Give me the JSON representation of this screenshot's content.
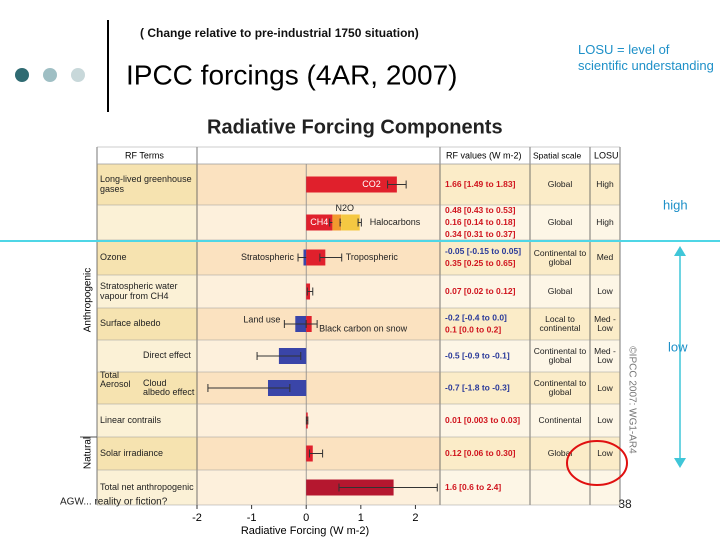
{
  "slide": {
    "subtitle": "( Change relative to  pre-industrial 1750 situation)",
    "title": "IPCC forcings (4AR, 2007)",
    "losu_note": "LOSU = level of scientific understanding",
    "high": "high",
    "low": "low",
    "footer": "AGW... reality or fiction?",
    "page_number": "38",
    "credit": "©IPCC 2007: WG1-AR4"
  },
  "chart_data": {
    "type": "bar",
    "orientation": "horizontal",
    "title": "Radiative Forcing Components",
    "xlabel": "Radiative Forcing (W m-2)",
    "column_headers": {
      "terms": "RF Terms",
      "values": "RF values (W m-2)",
      "scale": "Spatial scale",
      "losu": "LOSU"
    },
    "groups": {
      "anthropogenic": "Anthropogenic",
      "natural": "Natural",
      "aerosol": "Total Aerosol"
    },
    "rows": [
      {
        "label": "Long-lived greenhouse gases",
        "bars": [
          {
            "name": "CO2",
            "value": 1.66,
            "range": [
              1.49,
              1.83
            ],
            "value_label": "1.66 [1.49 to 1.83]",
            "color": "#e0202c"
          }
        ],
        "scale": "Global",
        "losu": "High"
      },
      {
        "stacked": true,
        "bars": [
          {
            "name": "CH4",
            "value": 0.48,
            "range": [
              0.43,
              0.53
            ],
            "value_label": "0.48 [0.43 to 0.53]",
            "color": "#e0202c"
          },
          {
            "name": "N2O",
            "value": 0.16,
            "range": [
              0.14,
              0.18
            ],
            "value_label": "0.16 [0.14 to 0.18]",
            "color": "#f29a2e"
          },
          {
            "name": "Halocarbons",
            "value": 0.34,
            "range": [
              0.31,
              0.37
            ],
            "value_label": "0.34 [0.31 to 0.37]",
            "color": "#f5c842"
          }
        ],
        "scale": "Global",
        "losu": "High"
      },
      {
        "label": "Ozone",
        "bars": [
          {
            "name": "Stratospheric",
            "value": -0.05,
            "range": [
              -0.15,
              0.05
            ],
            "value_label": "-0.05 [-0.15 to 0.05]",
            "color": "#3a45a8"
          },
          {
            "name": "Tropospheric",
            "value": 0.35,
            "range": [
              0.25,
              0.65
            ],
            "value_label": "0.35 [0.25 to 0.65]",
            "color": "#e0202c"
          }
        ],
        "scale": "Continental to global",
        "losu": "Med"
      },
      {
        "label": "Stratospheric water vapour from CH4",
        "bars": [
          {
            "value": 0.07,
            "range": [
              0.02,
              0.12
            ],
            "value_label": "0.07 [0.02 to 0.12]",
            "color": "#e0202c"
          }
        ],
        "scale": "Global",
        "losu": "Low"
      },
      {
        "label": "Surface albedo",
        "bars": [
          {
            "name": "Land use",
            "value": -0.2,
            "range": [
              -0.4,
              0.0
            ],
            "value_label": "-0.2 [-0.4 to 0.0]",
            "color": "#3a45a8"
          },
          {
            "name": "Black carbon on snow",
            "value": 0.1,
            "range": [
              0.0,
              0.2
            ],
            "value_label": "0.1 [0.0 to 0.2]",
            "color": "#e0202c"
          }
        ],
        "scale": "Local to continental",
        "losu": "Med - Low"
      },
      {
        "label": "Direct effect",
        "bars": [
          {
            "value": -0.5,
            "range": [
              -0.9,
              -0.1
            ],
            "value_label": "-0.5 [-0.9 to -0.1]",
            "color": "#3a45a8"
          }
        ],
        "scale": "Continental to global",
        "losu": "Med - Low"
      },
      {
        "label": "Cloud albedo effect",
        "bars": [
          {
            "value": -0.7,
            "range": [
              -1.8,
              -0.3
            ],
            "value_label": "-0.7 [-1.8 to -0.3]",
            "color": "#3a45a8"
          }
        ],
        "scale": "Continental to global",
        "losu": "Low"
      },
      {
        "label": "Linear contrails",
        "bars": [
          {
            "value": 0.01,
            "range": [
              0.003,
              0.03
            ],
            "value_label": "0.01 [0.003 to 0.03]",
            "color": "#e0202c"
          }
        ],
        "scale": "Continental",
        "losu": "Low"
      },
      {
        "label": "Solar irradiance",
        "bars": [
          {
            "value": 0.12,
            "range": [
              0.06,
              0.3
            ],
            "value_label": "0.12 [0.06 to 0.30]",
            "color": "#e0202c"
          }
        ],
        "scale": "Global",
        "losu": "Low"
      },
      {
        "label": "Total net anthropogenic",
        "bars": [
          {
            "value": 1.6,
            "range": [
              0.6,
              2.4
            ],
            "value_label": "1.6 [0.6 to 2.4]",
            "color": "#b5172f"
          }
        ]
      }
    ],
    "xlim": [
      -2,
      2.45
    ],
    "xticks": [
      -2,
      -1,
      0,
      1,
      2
    ]
  }
}
